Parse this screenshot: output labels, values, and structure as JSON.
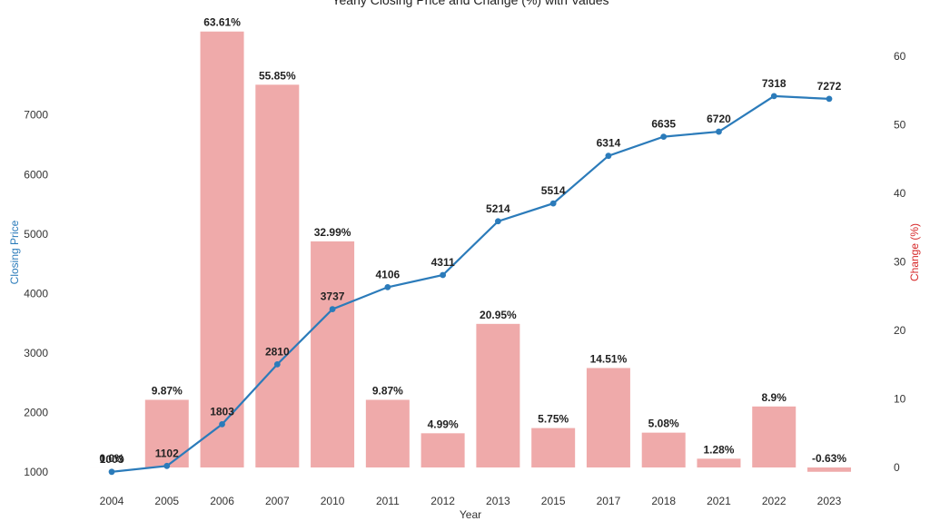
{
  "chart_data": {
    "type": "bar+line",
    "title": "Yearly Closing Price and Change (%) with Values",
    "xlabel": "Year",
    "ylabel_left": "Closing Price",
    "ylabel_right": "Change (%)",
    "categories": [
      "2004",
      "2005",
      "2006",
      "2007",
      "2010",
      "2011",
      "2012",
      "2013",
      "2015",
      "2017",
      "2018",
      "2021",
      "2022",
      "2023"
    ],
    "series": [
      {
        "name": "Closing Price",
        "type": "line",
        "axis": "left",
        "color": "#2b7bba",
        "values": [
          1003,
          1102,
          1803,
          2810,
          3737,
          4106,
          4311,
          5214,
          5514,
          6314,
          6635,
          6720,
          7318,
          7272
        ],
        "labels": [
          "1003",
          "1102",
          "1803",
          "2810",
          "3737",
          "4106",
          "4311",
          "5214",
          "5514",
          "6314",
          "6635",
          "6720",
          "7318",
          "7272"
        ]
      },
      {
        "name": "Change (%)",
        "type": "bar",
        "axis": "right",
        "color": "#eb9595",
        "values": [
          0,
          9.87,
          63.61,
          55.85,
          32.99,
          9.87,
          4.99,
          20.95,
          5.75,
          14.51,
          5.08,
          1.28,
          8.9,
          -0.63
        ],
        "labels": [
          "0.0%",
          "9.87%",
          "63.61%",
          "55.85%",
          "32.99%",
          "9.87%",
          "4.99%",
          "20.95%",
          "5.75%",
          "14.51%",
          "5.08%",
          "1.28%",
          "8.9%",
          "-0.63%"
        ]
      }
    ],
    "ylim_left": [
      1000,
      7000
    ],
    "yticks_left": [
      "1000",
      "2000",
      "3000",
      "4000",
      "5000",
      "6000",
      "7000"
    ],
    "ylim_right": [
      0,
      60
    ],
    "yticks_right": [
      "0",
      "10",
      "20",
      "30",
      "40",
      "50",
      "60"
    ],
    "grid": false,
    "colors": {
      "line": "#2b7bba",
      "bar": "#eb9595",
      "left_axis_label": "#2b7bba",
      "right_axis_label": "#d62728"
    }
  }
}
